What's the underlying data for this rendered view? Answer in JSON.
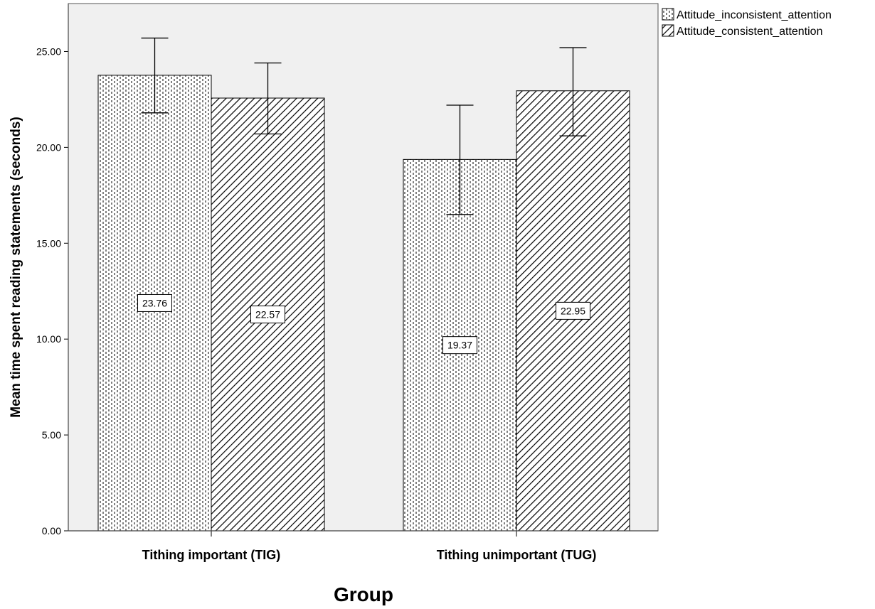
{
  "chart_data": {
    "type": "bar",
    "categories": [
      "Tithing important (TIG)",
      "Tithing unimportant (TUG)"
    ],
    "series": [
      {
        "name": "Attitude_inconsistent_attention",
        "pattern": "dotted",
        "values": [
          23.76,
          19.37
        ],
        "value_labels": [
          "23.76",
          "19.37"
        ],
        "error_low": [
          21.8,
          16.5
        ],
        "error_high": [
          25.7,
          22.2
        ]
      },
      {
        "name": "Attitude_consistent_attention",
        "pattern": "hatched",
        "values": [
          22.57,
          22.95
        ],
        "value_labels": [
          "22.57",
          "22.95"
        ],
        "error_low": [
          20.7,
          20.6
        ],
        "error_high": [
          24.4,
          25.2
        ]
      }
    ],
    "title": "",
    "xlabel": "Group",
    "ylabel": "Mean time spent reading statements (seconds)",
    "ylim": [
      0,
      27.5
    ],
    "yticks": [
      0,
      5,
      10,
      15,
      20,
      25
    ],
    "ytick_labels": [
      "0.00",
      "5.00",
      "10.00",
      "15.00",
      "20.00",
      "25.00"
    ],
    "grid": false,
    "legend_position": "top-right",
    "colors": {
      "plot_background": "#f0f0f0",
      "bar_fill": "#ffffff",
      "pattern_stroke": "#000000"
    }
  }
}
